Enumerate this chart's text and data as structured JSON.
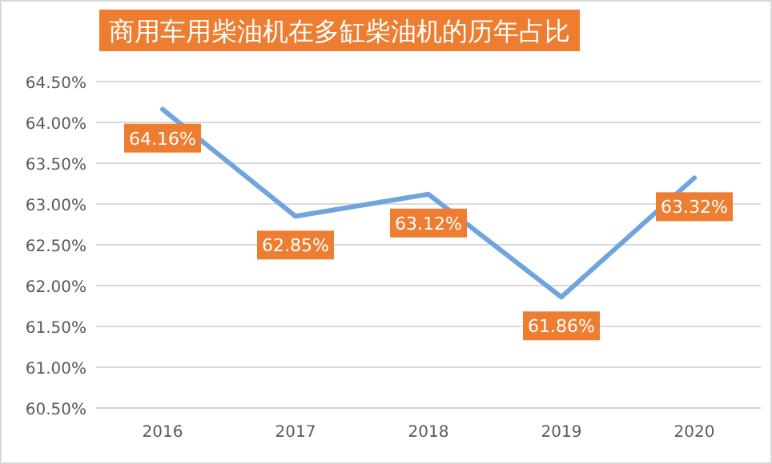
{
  "chart_data": {
    "type": "line",
    "title": "商用车用柴油机在多缸柴油机的历年占比",
    "categories": [
      "2016",
      "2017",
      "2018",
      "2019",
      "2020"
    ],
    "series": [
      {
        "color": "#6fa5dc",
        "values": [
          64.16,
          62.85,
          63.12,
          61.86,
          63.32
        ],
        "value_labels": [
          "64.16%",
          "62.85%",
          "63.12%",
          "61.86%",
          "63.32%"
        ]
      }
    ],
    "ylim": [
      60.5,
      64.5
    ],
    "yticks": [
      {
        "value": 60.5,
        "label": "60.50%"
      },
      {
        "value": 61,
        "label": "61.00%"
      },
      {
        "value": 61.5,
        "label": "61.50%"
      },
      {
        "value": 62,
        "label": "62.00%"
      },
      {
        "value": 62.5,
        "label": "62.50%"
      },
      {
        "value": 63,
        "label": "63.00%"
      },
      {
        "value": 63.5,
        "label": "63.50%"
      },
      {
        "value": 64,
        "label": "64.00%"
      },
      {
        "value": 64.5,
        "label": "64.50%"
      }
    ],
    "grid": "y",
    "marker": "none",
    "line_style": "solid"
  }
}
